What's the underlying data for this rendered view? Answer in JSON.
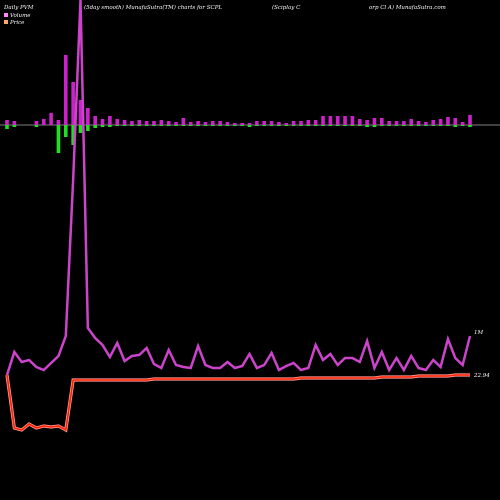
{
  "header": {
    "left": "Daily PVM",
    "center": "(5day smooth) MunafaSutra(TM) charts for SCPL",
    "right": "(Sciplay C",
    "right2": "orp Cl A) MunafaSutra.com"
  },
  "legend": [
    {
      "label": "Volume",
      "color": "#ff88ff"
    },
    {
      "label": "Price",
      "color": "#ffaa66"
    }
  ],
  "colors": {
    "background": "#000000",
    "volume_up": "#cc22cc",
    "volume_down": "#22dd22",
    "volume_line": "#cc44cc",
    "price_line": "#ff2200",
    "price_glow": "#ff9999",
    "baseline": "#aaaaaa"
  },
  "chart_data": {
    "type": "bar",
    "volume_label": "1M",
    "price_label": "22.94",
    "volume_bars": {
      "up": [
        5,
        4,
        0,
        0,
        4,
        6,
        12,
        5,
        70,
        43,
        25,
        17,
        9,
        6,
        9,
        6,
        5,
        4,
        5,
        4,
        4,
        5,
        4,
        3,
        7,
        3,
        4,
        3,
        4,
        4,
        3,
        2,
        2,
        2,
        4,
        4,
        4,
        3,
        2,
        4,
        4,
        5,
        5,
        9,
        9,
        9,
        9,
        9,
        6,
        5,
        7,
        7,
        4,
        4,
        4,
        6,
        4,
        3,
        5,
        6,
        8,
        7,
        3,
        10
      ],
      "down": [
        4,
        2,
        0,
        0,
        2,
        0,
        0,
        28,
        12,
        20,
        8,
        6,
        3,
        2,
        2,
        1,
        1,
        1,
        1,
        1,
        1,
        1,
        1,
        1,
        1,
        1,
        1,
        1,
        1,
        1,
        1,
        1,
        1,
        2,
        1,
        1,
        1,
        1,
        1,
        1,
        1,
        1,
        1,
        1,
        1,
        1,
        1,
        1,
        1,
        2,
        2,
        1,
        1,
        1,
        1,
        1,
        1,
        1,
        1,
        1,
        1,
        2,
        1,
        2
      ]
    },
    "volume_line": [
      375,
      352,
      362,
      360,
      367,
      370,
      363,
      356,
      336,
      180,
      0,
      328,
      338,
      345,
      357,
      343,
      361,
      356,
      355,
      348,
      364,
      368,
      350,
      365,
      367,
      368,
      346,
      365,
      368,
      368,
      362,
      368,
      366,
      354,
      368,
      365,
      353,
      370,
      366,
      363,
      370,
      368,
      345,
      360,
      354,
      365,
      358,
      358,
      362,
      341,
      368,
      352,
      370,
      358,
      370,
      356,
      368,
      370,
      360,
      367,
      339,
      358,
      365,
      336
    ],
    "price_line": [
      375,
      428,
      430,
      424,
      428,
      426,
      427,
      426,
      430,
      380,
      380,
      380,
      380,
      380,
      380,
      380,
      380,
      380,
      380,
      380,
      379,
      379,
      379,
      379,
      379,
      379,
      379,
      379,
      379,
      379,
      379,
      379,
      379,
      379,
      379,
      379,
      379,
      379,
      379,
      379,
      378,
      378,
      378,
      378,
      378,
      378,
      378,
      378,
      378,
      378,
      378,
      377,
      377,
      377,
      377,
      377,
      376,
      376,
      376,
      376,
      376,
      375,
      375,
      375
    ]
  }
}
